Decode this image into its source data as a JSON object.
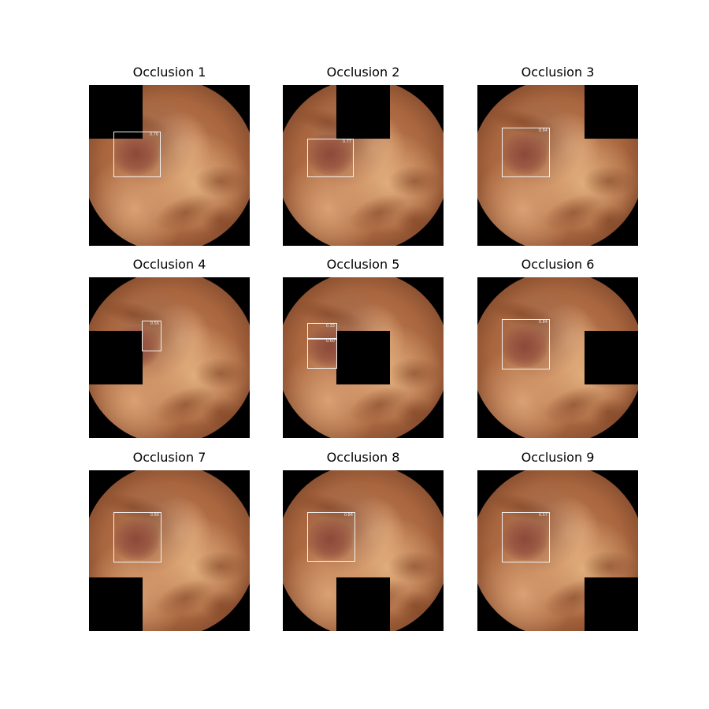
{
  "panels": [
    {
      "title": "Occlusion 1",
      "boxes": [
        {
          "score": "0.76"
        }
      ]
    },
    {
      "title": "Occlusion 2",
      "boxes": [
        {
          "score": "0.77"
        }
      ]
    },
    {
      "title": "Occlusion 3",
      "boxes": [
        {
          "score": "0.84"
        }
      ]
    },
    {
      "title": "Occlusion 4",
      "boxes": [
        {
          "score": "0.56"
        }
      ]
    },
    {
      "title": "Occlusion 5",
      "boxes": [
        {
          "score": "0.33"
        },
        {
          "score": "0.60"
        }
      ]
    },
    {
      "title": "Occlusion 6",
      "boxes": [
        {
          "score": "0.84"
        }
      ]
    },
    {
      "title": "Occlusion 7",
      "boxes": [
        {
          "score": "0.80"
        }
      ]
    },
    {
      "title": "Occlusion 8",
      "boxes": [
        {
          "score": "0.84"
        }
      ]
    },
    {
      "title": "Occlusion 9",
      "boxes": [
        {
          "score": "0.57"
        }
      ]
    }
  ]
}
